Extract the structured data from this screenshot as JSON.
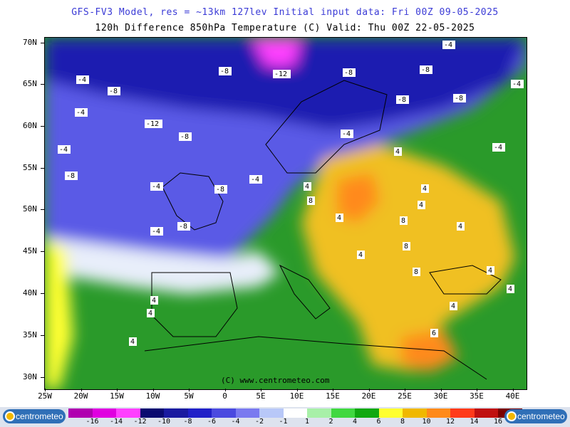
{
  "header": {
    "line1": "GFS-FV3 Model, res = ~13km 127lev   Initial input data: Fri 00Z 09-05-2025",
    "line2": "120h Difference 850hPa Temperature (C)  Valid: Thu 00Z 22-05-2025",
    "line1_color": "#3b3bd6"
  },
  "map": {
    "lat_labels": [
      "70N",
      "65N",
      "60N",
      "55N",
      "50N",
      "45N",
      "40N",
      "35N",
      "30N"
    ],
    "lon_labels": [
      "25W",
      "20W",
      "15W",
      "10W",
      "5W",
      "0",
      "5E",
      "10E",
      "15E",
      "20E",
      "25E",
      "30E",
      "35E",
      "40E"
    ],
    "credit": "(C) www.centrometeo.com",
    "contour_labels": [
      "-4",
      "-4",
      "-8",
      "-12",
      "-8",
      "-8",
      "-4",
      "-8",
      "-4",
      "-8",
      "-4",
      "-8",
      "-12",
      "-8",
      "-8",
      "-4",
      "-8",
      "-4",
      "-4",
      "-8",
      "-4",
      "-4",
      "4",
      "8",
      "4",
      "4",
      "4",
      "8",
      "8",
      "8",
      "4",
      "4",
      "4",
      "4",
      "4",
      "4",
      "4",
      "4",
      "6",
      "4"
    ]
  },
  "colorbar": {
    "labels": [
      "-16",
      "-14",
      "-12",
      "-10",
      "-8",
      "-6",
      "-4",
      "-2",
      "-1",
      "1",
      "2",
      "4",
      "6",
      "8",
      "10",
      "12",
      "14",
      "16"
    ],
    "colors": [
      "#b000b0",
      "#e000e0",
      "#ff40ff",
      "#0a0a70",
      "#1a1aa0",
      "#2020c8",
      "#4a4ae0",
      "#7a7af0",
      "#b8c8f8",
      "#ffffff",
      "#a8f0a8",
      "#40d840",
      "#10a810",
      "#ffff30",
      "#f0b800",
      "#ff8a1a",
      "#ff3a1a",
      "#c01010",
      "#7a0000"
    ],
    "logo_text": "centrometeo"
  }
}
